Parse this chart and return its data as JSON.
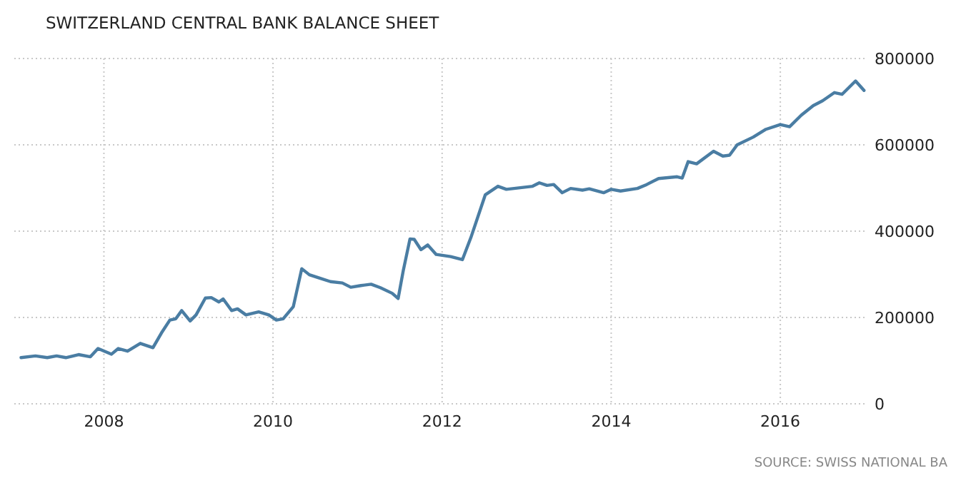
{
  "chart_data": {
    "type": "line",
    "title": "SWITZERLAND CENTRAL BANK BALANCE SHEET",
    "annotations": [
      "SOURCE: SWISS NATIONAL BA"
    ],
    "x": [
      2007.02,
      2007.19,
      2007.33,
      2007.44,
      2007.55,
      2007.7,
      2007.84,
      2007.93,
      2008.09,
      2008.17,
      2008.28,
      2008.43,
      2008.58,
      2008.68,
      2008.78,
      2008.85,
      2008.92,
      2009.02,
      2009.09,
      2009.2,
      2009.27,
      2009.36,
      2009.41,
      2009.51,
      2009.58,
      2009.68,
      2009.83,
      2009.95,
      2010.04,
      2010.12,
      2010.24,
      2010.34,
      2010.43,
      2010.54,
      2010.68,
      2010.82,
      2010.92,
      2011.04,
      2011.16,
      2011.27,
      2011.41,
      2011.48,
      2011.54,
      2011.62,
      2011.67,
      2011.75,
      2011.83,
      2011.93,
      2012.1,
      2012.24,
      2012.34,
      2012.51,
      2012.66,
      2012.76,
      2013.07,
      2013.15,
      2013.24,
      2013.32,
      2013.42,
      2013.52,
      2013.66,
      2013.74,
      2013.91,
      2014.0,
      2014.11,
      2014.31,
      2014.42,
      2014.56,
      2014.78,
      2014.84,
      2014.91,
      2015.01,
      2015.21,
      2015.32,
      2015.4,
      2015.49,
      2015.68,
      2015.83,
      2016.0,
      2016.11,
      2016.25,
      2016.39,
      2016.5,
      2016.64,
      2016.73,
      2016.89,
      2016.99
    ],
    "series": [
      {
        "color": "#4a7da3",
        "values": [
          107000,
          111000,
          107000,
          111000,
          107000,
          114000,
          109000,
          128000,
          115000,
          128000,
          122000,
          140000,
          130000,
          164000,
          194000,
          197000,
          216000,
          192000,
          206000,
          245000,
          246000,
          236000,
          243000,
          216000,
          220000,
          206000,
          213000,
          206000,
          194000,
          197000,
          225000,
          313000,
          299000,
          292000,
          283000,
          280000,
          270000,
          274000,
          277000,
          269000,
          256000,
          244000,
          308000,
          382000,
          381000,
          357000,
          368000,
          346000,
          341000,
          334000,
          385000,
          484000,
          504000,
          497000,
          504000,
          512000,
          506000,
          508000,
          489000,
          499000,
          495000,
          498000,
          489000,
          497000,
          493000,
          499000,
          508000,
          522000,
          526000,
          523000,
          561000,
          556000,
          585000,
          574000,
          576000,
          600000,
          618000,
          636000,
          647000,
          642000,
          669000,
          691000,
          702000,
          721000,
          717000,
          748000,
          726000
        ]
      }
    ],
    "xlim": [
      2006.94,
      2017.03
    ],
    "xticks": [
      2008,
      2010,
      2012,
      2014,
      2016
    ],
    "ylim": [
      0,
      800000
    ],
    "yticks": [
      0,
      200000,
      400000,
      600000,
      800000
    ],
    "grid": true,
    "marker": "none",
    "line_style": "solid"
  }
}
